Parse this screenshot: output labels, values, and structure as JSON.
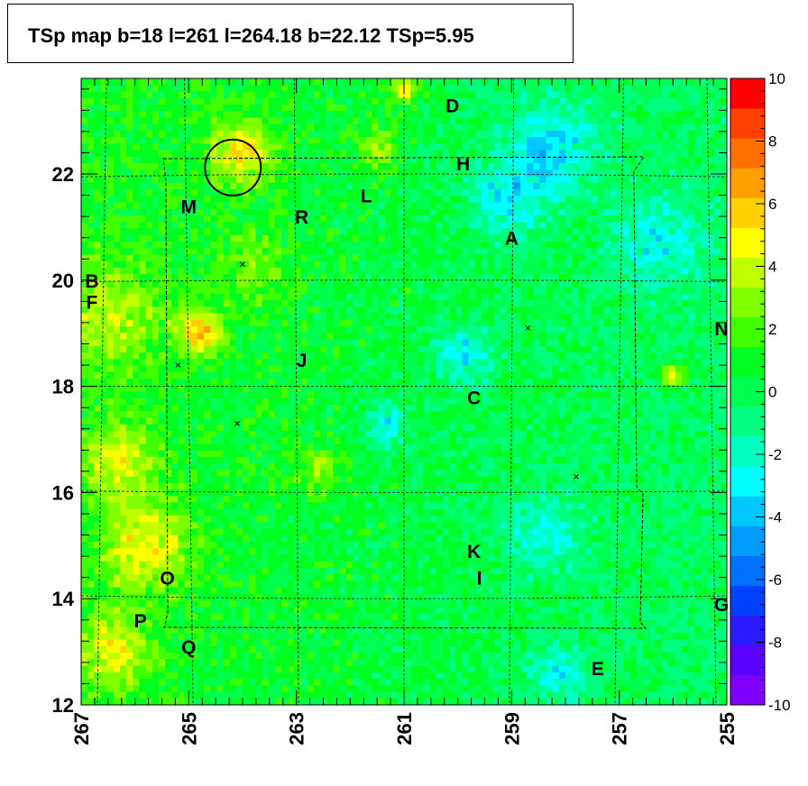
{
  "chart_data": {
    "type": "heatmap",
    "title": "TSp map b=18 l=261 l=264.18 b=22.12 TSp=5.95",
    "x_axis": {
      "range": [
        267,
        255
      ],
      "ticks": [
        "267",
        "265",
        "263",
        "261",
        "259",
        "257",
        "255"
      ],
      "direction": "reversed"
    },
    "y_axis": {
      "range": [
        12,
        23.8
      ],
      "ticks": [
        "12",
        "14",
        "16",
        "18",
        "20",
        "22"
      ]
    },
    "colorbar": {
      "range": [
        -10,
        10
      ],
      "ticks": [
        "10",
        "8",
        "6",
        "4",
        "2",
        "0",
        "-2",
        "-4",
        "-6",
        "-8",
        "-10"
      ],
      "colors": [
        "#7f00ff",
        "#5a00ff",
        "#2a1aff",
        "#0040ff",
        "#0070ff",
        "#009cff",
        "#00c8ff",
        "#00ffff",
        "#00ffc0",
        "#00ff80",
        "#00ff50",
        "#00ff20",
        "#40ff00",
        "#80ff00",
        "#c0ff00",
        "#ffff00",
        "#ffd000",
        "#ffa000",
        "#ff7000",
        "#ff4000",
        "#ff0000"
      ]
    },
    "grid": true,
    "circle": {
      "l": 264.18,
      "b": 22.12,
      "radius_deg": 0.5
    },
    "markers": [
      {
        "l": 264.0,
        "b": 20.3
      },
      {
        "l": 265.2,
        "b": 18.4
      },
      {
        "l": 264.1,
        "b": 17.3
      },
      {
        "l": 258.7,
        "b": 19.1
      },
      {
        "l": 257.8,
        "b": 16.3
      }
    ],
    "sources": [
      {
        "name": "D",
        "l": 260.1,
        "b": 23.3
      },
      {
        "name": "H",
        "l": 259.9,
        "b": 22.2
      },
      {
        "name": "L",
        "l": 261.7,
        "b": 21.6
      },
      {
        "name": "M",
        "l": 265.0,
        "b": 21.4
      },
      {
        "name": "R",
        "l": 262.9,
        "b": 21.2
      },
      {
        "name": "A",
        "l": 259.0,
        "b": 20.8
      },
      {
        "name": "B",
        "l": 266.8,
        "b": 20.0
      },
      {
        "name": "F",
        "l": 266.8,
        "b": 19.6
      },
      {
        "name": "N",
        "l": 255.1,
        "b": 19.1
      },
      {
        "name": "J",
        "l": 262.9,
        "b": 18.5
      },
      {
        "name": "C",
        "l": 259.7,
        "b": 17.8
      },
      {
        "name": "K",
        "l": 259.7,
        "b": 14.9
      },
      {
        "name": "I",
        "l": 259.6,
        "b": 14.4
      },
      {
        "name": "O",
        "l": 265.4,
        "b": 14.4
      },
      {
        "name": "G",
        "l": 255.1,
        "b": 13.9
      },
      {
        "name": "P",
        "l": 265.9,
        "b": 13.6
      },
      {
        "name": "Q",
        "l": 265.0,
        "b": 13.1
      },
      {
        "name": "E",
        "l": 257.4,
        "b": 12.7
      }
    ],
    "hotspots": [
      {
        "l": 264.8,
        "b": 19.0,
        "value": 5.2,
        "sigma": 0.3
      },
      {
        "l": 264.0,
        "b": 22.4,
        "value": 4.2,
        "sigma": 0.45
      },
      {
        "l": 265.8,
        "b": 15.0,
        "value": 3.8,
        "sigma": 0.6
      },
      {
        "l": 266.4,
        "b": 13.0,
        "value": 3.5,
        "sigma": 0.5
      },
      {
        "l": 266.3,
        "b": 16.6,
        "value": 3.3,
        "sigma": 0.5
      },
      {
        "l": 256.0,
        "b": 18.2,
        "value": 5.5,
        "sigma": 0.15
      },
      {
        "l": 261.0,
        "b": 23.6,
        "value": 4.0,
        "sigma": 0.2
      },
      {
        "l": 266.5,
        "b": 19.3,
        "value": 2.8,
        "sigma": 0.7
      },
      {
        "l": 262.6,
        "b": 16.4,
        "value": 2.6,
        "sigma": 0.3
      },
      {
        "l": 261.5,
        "b": 22.5,
        "value": 2.6,
        "sigma": 0.3
      },
      {
        "l": 258.3,
        "b": 22.5,
        "value": -3.2,
        "sigma": 0.6
      },
      {
        "l": 259.1,
        "b": 21.5,
        "value": -3.0,
        "sigma": 0.5
      },
      {
        "l": 259.9,
        "b": 18.6,
        "value": -3.0,
        "sigma": 0.4
      },
      {
        "l": 261.3,
        "b": 17.3,
        "value": -3.0,
        "sigma": 0.3
      },
      {
        "l": 258.4,
        "b": 15.2,
        "value": -2.7,
        "sigma": 0.5
      },
      {
        "l": 256.3,
        "b": 20.7,
        "value": -2.5,
        "sigma": 0.6
      },
      {
        "l": 258.1,
        "b": 12.6,
        "value": -2.5,
        "sigma": 0.4
      },
      {
        "l": 263.8,
        "b": 20.2,
        "value": 1.8,
        "sigma": 0.5
      }
    ]
  }
}
